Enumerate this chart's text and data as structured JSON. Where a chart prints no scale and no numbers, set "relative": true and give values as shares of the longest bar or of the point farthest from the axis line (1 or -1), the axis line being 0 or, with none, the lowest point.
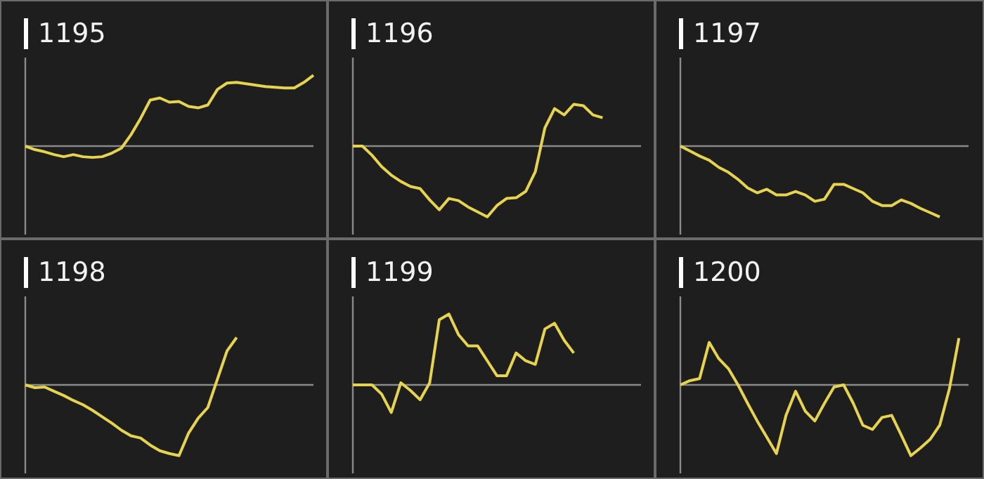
{
  "chart_data": [
    {
      "type": "line",
      "title": "1195",
      "relative": true,
      "categories": [
        null,
        null,
        null,
        null,
        null,
        null,
        null,
        null,
        null,
        null,
        null,
        null,
        null,
        null,
        null,
        null,
        null,
        null,
        null,
        null,
        null,
        null,
        null,
        null,
        null,
        null,
        null,
        null,
        null,
        null,
        null
      ],
      "series": [
        {
          "color": "#e6d34f",
          "values": [
            0,
            -0.05,
            -0.08,
            -0.12,
            -0.15,
            -0.12,
            -0.15,
            -0.16,
            -0.15,
            -0.1,
            -0.03,
            0.16,
            0.39,
            0.65,
            0.68,
            0.62,
            0.63,
            0.56,
            0.54,
            0.58,
            0.8,
            0.89,
            0.9,
            0.88,
            0.86,
            0.84,
            0.83,
            0.82,
            0.82,
            0.9,
            1
          ]
        }
      ]
    },
    {
      "type": "line",
      "title": "1196",
      "relative": true,
      "categories": [
        null,
        null,
        null,
        null,
        null,
        null,
        null,
        null,
        null,
        null,
        null,
        null,
        null,
        null,
        null,
        null,
        null,
        null,
        null,
        null,
        null,
        null,
        null,
        null,
        null,
        null,
        null,
        null,
        null,
        null,
        null
      ],
      "series": [
        {
          "color": "#e6d34f",
          "values": [
            0,
            0,
            -0.13,
            -0.29,
            -0.41,
            -0.5,
            -0.57,
            -0.6,
            -0.76,
            -0.9,
            -0.74,
            -0.77,
            -0.86,
            -0.93,
            -1,
            -0.84,
            -0.74,
            -0.73,
            -0.64,
            -0.36,
            0.26,
            0.53,
            0.44,
            0.59,
            0.57,
            0.44,
            0.4,
            null,
            null,
            null,
            null
          ]
        }
      ]
    },
    {
      "type": "line",
      "title": "1197",
      "relative": true,
      "categories": [
        null,
        null,
        null,
        null,
        null,
        null,
        null,
        null,
        null,
        null,
        null,
        null,
        null,
        null,
        null,
        null,
        null,
        null,
        null,
        null,
        null,
        null,
        null,
        null,
        null,
        null,
        null,
        null,
        null,
        null,
        null
      ],
      "series": [
        {
          "color": "#e6d34f",
          "values": [
            0,
            -0.07,
            -0.14,
            -0.2,
            -0.3,
            -0.37,
            -0.47,
            -0.59,
            -0.66,
            -0.61,
            -0.69,
            -0.69,
            -0.64,
            -0.69,
            -0.78,
            -0.75,
            -0.54,
            -0.54,
            -0.6,
            -0.66,
            -0.78,
            -0.84,
            -0.84,
            -0.76,
            -0.81,
            -0.88,
            -0.94,
            -1,
            null,
            null,
            null
          ]
        }
      ]
    },
    {
      "type": "line",
      "title": "1198",
      "relative": true,
      "categories": [
        null,
        null,
        null,
        null,
        null,
        null,
        null,
        null,
        null,
        null,
        null,
        null,
        null,
        null,
        null,
        null,
        null,
        null,
        null,
        null,
        null,
        null,
        null,
        null,
        null,
        null,
        null,
        null,
        null,
        null,
        null
      ],
      "series": [
        {
          "color": "#e6d34f",
          "values": [
            0,
            -0.04,
            -0.03,
            -0.09,
            -0.15,
            -0.22,
            -0.28,
            -0.36,
            -0.45,
            -0.54,
            -0.64,
            -0.72,
            -0.75,
            -0.85,
            -0.93,
            -0.97,
            -1,
            -0.68,
            -0.47,
            -0.32,
            0.08,
            0.48,
            0.67,
            null,
            null,
            null,
            null,
            null,
            null,
            null,
            null
          ]
        }
      ]
    },
    {
      "type": "line",
      "title": "1199",
      "relative": true,
      "categories": [
        null,
        null,
        null,
        null,
        null,
        null,
        null,
        null,
        null,
        null,
        null,
        null,
        null,
        null,
        null,
        null,
        null,
        null,
        null,
        null,
        null,
        null,
        null,
        null,
        null,
        null,
        null,
        null,
        null,
        null,
        null
      ],
      "series": [
        {
          "color": "#e6d34f",
          "values": [
            0,
            0,
            0,
            -0.13,
            -0.39,
            0.03,
            -0.08,
            -0.21,
            0.03,
            0.92,
            1,
            0.71,
            0.55,
            0.55,
            0.34,
            0.13,
            0.13,
            0.45,
            0.34,
            0.29,
            0.79,
            0.87,
            0.63,
            0.45,
            null,
            null,
            null,
            null,
            null,
            null,
            null
          ]
        }
      ]
    },
    {
      "type": "line",
      "title": "1200",
      "relative": true,
      "categories": [
        null,
        null,
        null,
        null,
        null,
        null,
        null,
        null,
        null,
        null,
        null,
        null,
        null,
        null,
        null,
        null,
        null,
        null,
        null,
        null,
        null,
        null,
        null,
        null,
        null,
        null,
        null,
        null,
        null,
        null,
        null
      ],
      "series": [
        {
          "color": "#e6d34f",
          "values": [
            0,
            0.06,
            0.09,
            0.6,
            0.37,
            0.23,
            0,
            -0.26,
            -0.51,
            -0.74,
            -0.97,
            -0.43,
            -0.09,
            -0.37,
            -0.51,
            -0.26,
            -0.03,
            0,
            -0.26,
            -0.57,
            -0.63,
            -0.46,
            -0.43,
            -0.71,
            -1,
            -0.89,
            -0.77,
            -0.57,
            -0.06,
            0.66,
            null
          ]
        }
      ]
    }
  ]
}
